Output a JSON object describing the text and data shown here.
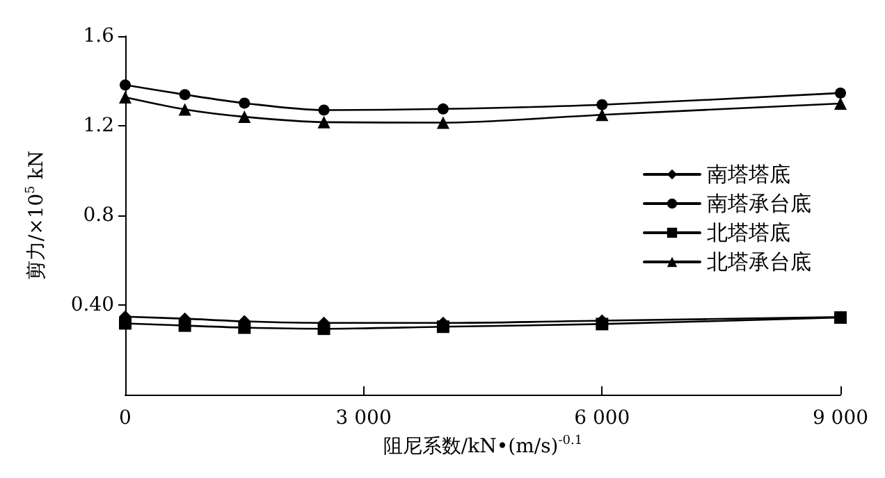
{
  "chart_data": {
    "type": "line",
    "xlabel": "阻尼系数/kN•(m/s)$^{-0.1}$",
    "ylabel": "剪力/×10$^{5}$ kN",
    "x": [
      0,
      750,
      1500,
      2500,
      4000,
      6000,
      9000
    ],
    "series": [
      {
        "name": "南塔塔底",
        "color": "#000000",
        "marker": "diamond",
        "values": [
          0.348,
          0.339,
          0.327,
          0.32,
          0.32,
          0.33,
          0.346
        ]
      },
      {
        "name": "南塔承台底",
        "color": "#000000",
        "marker": "circle",
        "values": [
          1.382,
          1.339,
          1.301,
          1.27,
          1.275,
          1.294,
          1.346
        ]
      },
      {
        "name": "北塔塔底",
        "color": "#000000",
        "marker": "square",
        "values": [
          0.318,
          0.308,
          0.299,
          0.294,
          0.303,
          0.315,
          0.344
        ]
      },
      {
        "name": "北塔承台底",
        "color": "#000000",
        "marker": "triangle",
        "values": [
          1.327,
          1.273,
          1.24,
          1.216,
          1.214,
          1.249,
          1.299
        ]
      }
    ],
    "xlim": [
      0,
      9000
    ],
    "xticks": [
      0,
      {
        "value": 3000,
        "label": "3 000"
      },
      {
        "value": 6000,
        "label": "6 000"
      },
      {
        "value": 9000,
        "label": "9 000"
      }
    ],
    "ylim": [
      0,
      1.6
    ],
    "yticks": [
      {
        "value": 0.4,
        "label": "0.40"
      },
      0.8,
      1.2,
      1.6
    ],
    "grid": false,
    "legend": "right",
    "line_style": "solid"
  }
}
